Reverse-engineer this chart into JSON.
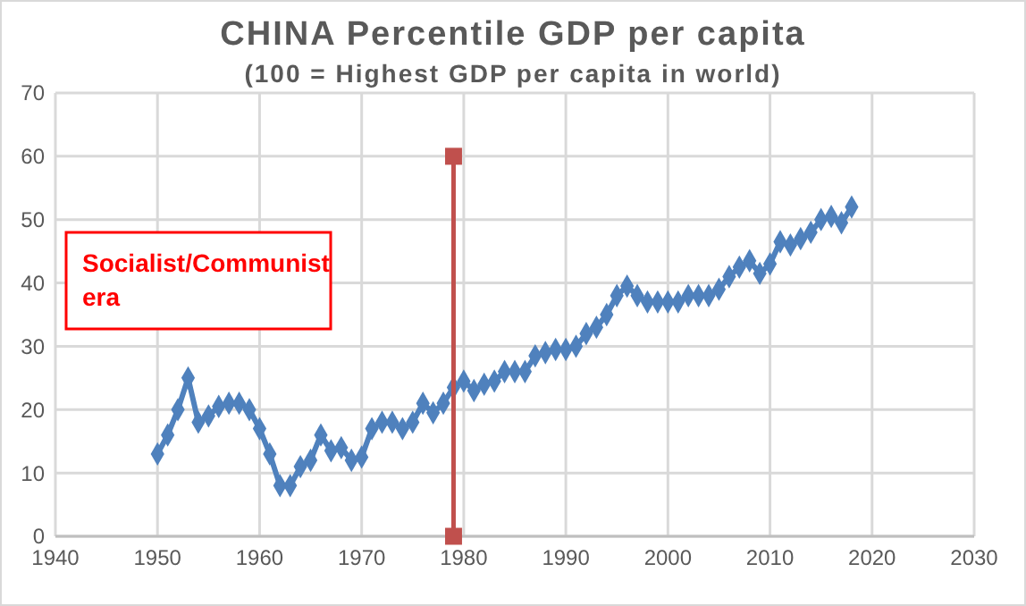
{
  "chart_data": {
    "type": "line",
    "title": "CHINA Percentile GDP per capita",
    "subtitle": "(100 = Highest GDP per capita in world)",
    "annotations": [
      "Socialist/Communist era"
    ],
    "xlim": [
      1940,
      2030
    ],
    "xticks": [
      1940,
      1950,
      1960,
      1970,
      1980,
      1990,
      2000,
      2010,
      2020,
      2030
    ],
    "ylim": [
      0,
      70
    ],
    "yticks": [
      0,
      10,
      20,
      30,
      40,
      50,
      60,
      70
    ],
    "grid": true,
    "series": [
      {
        "color": "#4f81bd",
        "marker": "diamond",
        "x": [
          1950,
          1951,
          1952,
          1953,
          1954,
          1955,
          1956,
          1957,
          1958,
          1959,
          1960,
          1961,
          1962,
          1963,
          1964,
          1965,
          1966,
          1967,
          1968,
          1969,
          1970,
          1971,
          1972,
          1973,
          1974,
          1975,
          1976,
          1977,
          1978,
          1979,
          1980,
          1981,
          1982,
          1983,
          1984,
          1985,
          1986,
          1987,
          1988,
          1989,
          1990,
          1991,
          1992,
          1993,
          1994,
          1995,
          1996,
          1997,
          1998,
          1999,
          2000,
          2001,
          2002,
          2003,
          2004,
          2005,
          2006,
          2007,
          2008,
          2009,
          2010,
          2011,
          2012,
          2013,
          2014,
          2015,
          2016,
          2017,
          2018
        ],
        "values": [
          13,
          16,
          20,
          25,
          18,
          19,
          20.5,
          21,
          21,
          20,
          17,
          13,
          8,
          8,
          11,
          12,
          16,
          13.5,
          14,
          12,
          12.5,
          17,
          18,
          18,
          17,
          18,
          21,
          19.5,
          21,
          23.5,
          24.5,
          23,
          24,
          24.5,
          26,
          26,
          26,
          28.5,
          29,
          29.5,
          29.5,
          30,
          32,
          33,
          35,
          38,
          39.5,
          38,
          37,
          37,
          37,
          37,
          38,
          38,
          38,
          39,
          41,
          42.5,
          43.5,
          41.5,
          43,
          46.5,
          46,
          47,
          48,
          50,
          50.5,
          49.5,
          52
        ]
      },
      {
        "color": "#c0504d",
        "marker": "square",
        "x": [
          1979,
          1979
        ],
        "values": [
          0,
          60
        ]
      }
    ]
  }
}
